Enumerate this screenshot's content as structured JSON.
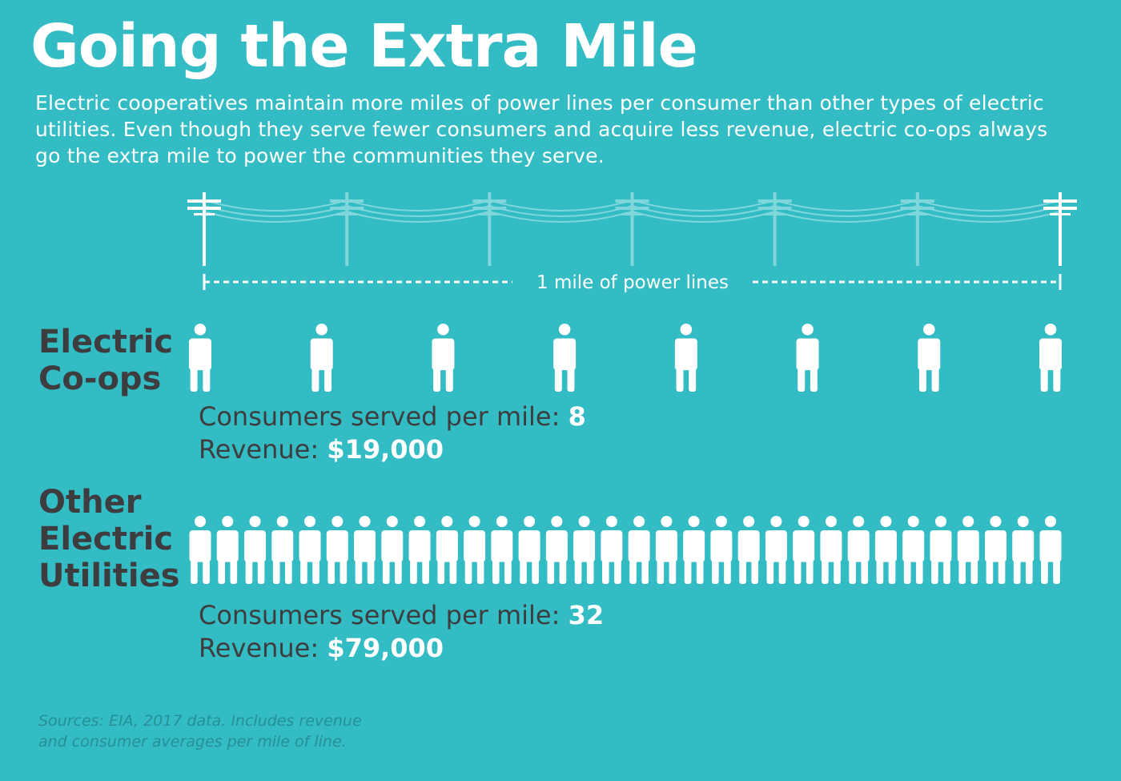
{
  "header": {
    "title": "Going the Extra Mile",
    "intro": "Electric cooperatives maintain more miles of power lines per consumer than other types of electric utilities. Even though they serve fewer consumers and acquire less revenue, electric co-ops always go the extra mile to power the communities they serve."
  },
  "power_line": {
    "label": "1 mile of power lines",
    "pole_count": 7
  },
  "colors": {
    "background": "#33bcc4",
    "label_text": "#3d3d3f",
    "highlight_text": "#ffffff",
    "footnote_text": "#268f96",
    "faded_pole": "#7fd6db"
  },
  "groups": [
    {
      "label_line1": "Electric",
      "label_line2": "Co-ops",
      "label_line3": "",
      "consumers_label": "Consumers served per mile: ",
      "consumers_value": "8",
      "revenue_label": "Revenue: ",
      "revenue_value": "$19,000"
    },
    {
      "label_line1": "Other",
      "label_line2": "Electric",
      "label_line3": "Utilities",
      "consumers_label": "Consumers served per mile: ",
      "consumers_value": "32",
      "revenue_label": "Revenue: ",
      "revenue_value": "$79,000"
    }
  ],
  "chart_data": {
    "type": "bar",
    "categories": [
      "Electric Co-ops",
      "Other Electric Utilities"
    ],
    "series": [
      {
        "name": "Consumers served per mile",
        "values": [
          8,
          32
        ]
      },
      {
        "name": "Revenue",
        "values": [
          19000,
          79000
        ]
      }
    ],
    "title": "Going the Extra Mile",
    "xlabel": "1 mile of power lines",
    "ylabel": "",
    "unit_icon": "person-icon"
  },
  "footnote": {
    "line1": "Sources: EIA, 2017 data. Includes revenue",
    "line2": "and consumer averages per mile of line."
  }
}
